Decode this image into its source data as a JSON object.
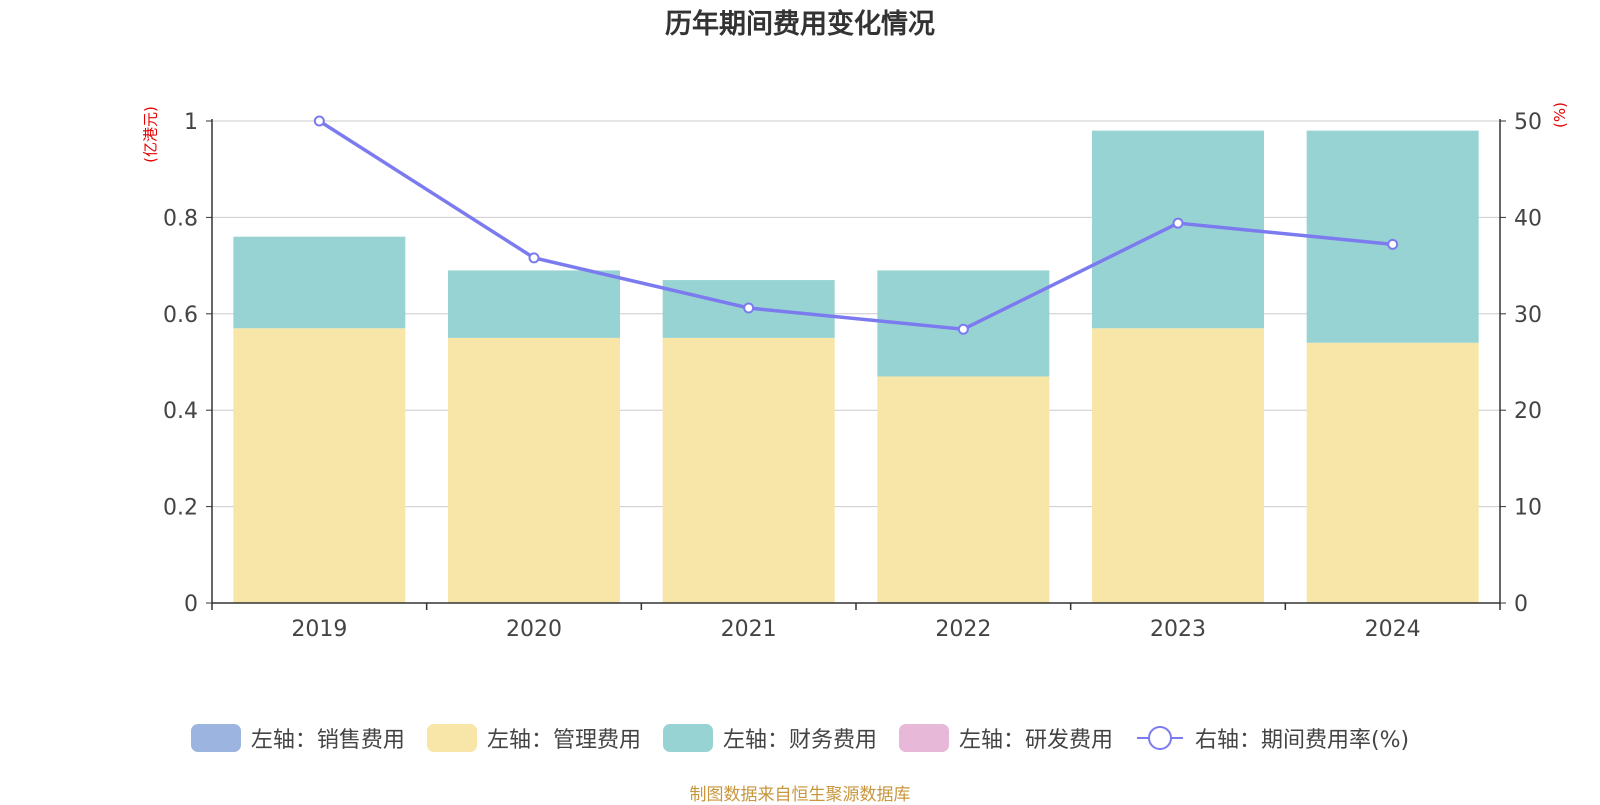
{
  "title": "历年期间费用变化情况",
  "left_unit": "(亿港元)",
  "right_unit": "(%)",
  "source": "制图数据来自恒生聚源数据库",
  "colors": {
    "sales": "#9bb5e0",
    "admin": "#f7e6a8",
    "finance": "#98d3d4",
    "rnd": "#e7b8d8",
    "rate_line": "#7b7bef",
    "grid": "#cccccc",
    "axis": "#333333",
    "unit_text": "#e60000"
  },
  "legend": [
    {
      "label": "左轴：销售费用",
      "type": "box",
      "color_key": "sales"
    },
    {
      "label": "左轴：管理费用",
      "type": "box",
      "color_key": "admin"
    },
    {
      "label": "左轴：财务费用",
      "type": "box",
      "color_key": "finance"
    },
    {
      "label": "左轴：研发费用",
      "type": "box",
      "color_key": "rnd"
    },
    {
      "label": "右轴：期间费用率(%)",
      "type": "line",
      "color_key": "rate_line"
    }
  ],
  "chart_data": {
    "type": "bar",
    "stacked": true,
    "categories": [
      "2019",
      "2020",
      "2021",
      "2022",
      "2023",
      "2024"
    ],
    "series": [
      {
        "name": "左轴：管理费用",
        "axis": "left",
        "values": [
          0.57,
          0.55,
          0.55,
          0.47,
          0.57,
          0.54
        ]
      },
      {
        "name": "左轴：财务费用",
        "axis": "left",
        "values": [
          0.19,
          0.14,
          0.12,
          0.22,
          0.41,
          0.44
        ]
      },
      {
        "name": "右轴：期间费用率(%)",
        "axis": "right",
        "type": "line",
        "values": [
          50.0,
          35.8,
          30.6,
          28.4,
          39.4,
          37.2
        ]
      }
    ],
    "y_left": {
      "ylim": [
        0,
        1
      ],
      "ticks": [
        "0",
        "0.2",
        "0.4",
        "0.6",
        "0.8",
        "1"
      ]
    },
    "y_right": {
      "ylim": [
        0,
        50
      ],
      "ticks": [
        "0",
        "10",
        "20",
        "30",
        "40",
        "50"
      ]
    },
    "grid": true,
    "legend_position": "bottom"
  }
}
